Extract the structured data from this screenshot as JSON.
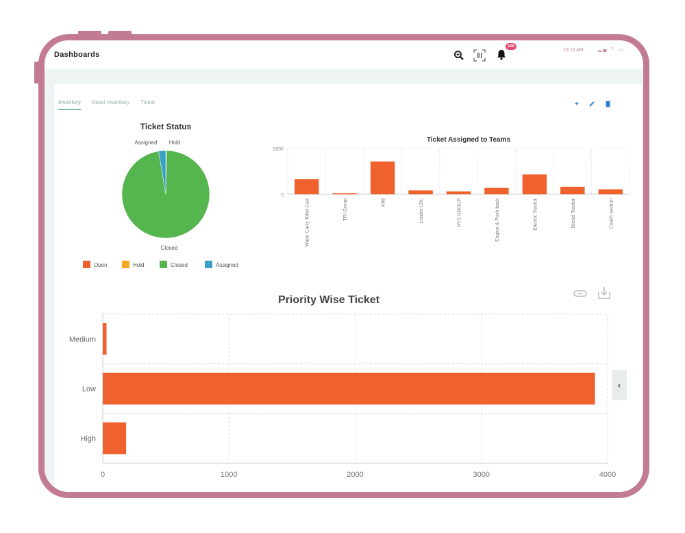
{
  "app": {
    "title": "Dashboards"
  },
  "status_bar": {
    "time": "10:10 AM",
    "notification_badge": "100"
  },
  "tabs": [
    {
      "label": "Inventory",
      "active": true
    },
    {
      "label": "Asset Inventory",
      "active": false
    },
    {
      "label": "Ticket",
      "active": false
    }
  ],
  "toolbar": {
    "add": "+",
    "edit": "✎",
    "delete": "🗑"
  },
  "colors": {
    "frame": "#c27b93",
    "bar": "#f0622d",
    "open": "#f0622d",
    "hold": "#f5a623",
    "closed": "#55b54f",
    "assigned": "#3aa0c8",
    "accent_blue": "#2b7fd0"
  },
  "chart_data": [
    {
      "type": "pie",
      "title": "Ticket Status",
      "labels": [
        "Open",
        "Hold",
        "Closed",
        "Assigned"
      ],
      "values": [
        2,
        10,
        4070,
        110
      ],
      "slice_labels_shown": [
        "Assigned",
        "Hold",
        "Closed"
      ],
      "legend": [
        "Open",
        "Hold",
        "Closed",
        "Assigned"
      ],
      "legend_position": "bottom"
    },
    {
      "type": "bar",
      "title": "Ticket Assigned to Teams",
      "categories": [
        "Water Carry Toilet Cart",
        "TRI Group",
        "A98",
        "Loader LDL",
        "HYD GROUP",
        "Engine & Push back",
        "Electric Tractor",
        "Diesel Tractor",
        "Coach section"
      ],
      "values": [
        660,
        50,
        1430,
        170,
        130,
        280,
        870,
        330,
        220
      ],
      "ylim": [
        0,
        2000
      ],
      "yticks": [
        "0",
        "2000"
      ],
      "grid": true
    },
    {
      "type": "bar",
      "orientation": "horizontal",
      "title": "Priority Wise Ticket",
      "categories": [
        "Medium",
        "Low",
        "High"
      ],
      "values": [
        30,
        3900,
        185
      ],
      "xlim": [
        0,
        4000
      ],
      "xticks": [
        "0",
        "1000",
        "2000",
        "3000",
        "4000"
      ],
      "grid": true
    }
  ]
}
